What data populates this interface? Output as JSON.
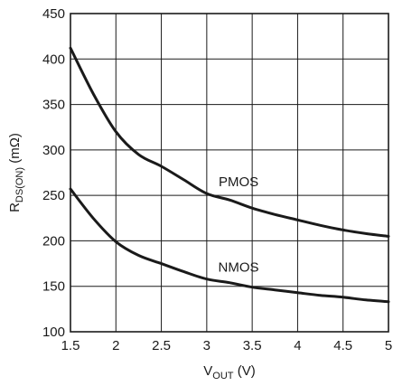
{
  "chart_data": {
    "type": "line",
    "title": "",
    "xlabel": {
      "main": "V",
      "sub": "OUT",
      "suffix": " (V)"
    },
    "ylabel": {
      "main": "R",
      "sub": "DS(ON)",
      "suffix": " (mΩ)"
    },
    "xlim": [
      1.5,
      5
    ],
    "ylim": [
      100,
      450
    ],
    "x_ticks": [
      1.5,
      2,
      2.5,
      3,
      3.5,
      4,
      4.5,
      5
    ],
    "x_tick_labels": [
      "1.5",
      "2",
      "2.5",
      "3",
      "3.5",
      "4",
      "4.5",
      "5"
    ],
    "y_ticks": [
      100,
      150,
      200,
      250,
      300,
      350,
      400,
      450
    ],
    "y_tick_labels": [
      "100",
      "150",
      "200",
      "250",
      "300",
      "350",
      "400",
      "450"
    ],
    "grid": true,
    "colors": {
      "line": "#1a1a1a",
      "grid": "#1a1a1a",
      "frame": "#1a1a1a"
    },
    "series": [
      {
        "name": "PMOS",
        "label_x": 3.35,
        "label_y": 265,
        "x": [
          1.5,
          1.75,
          2.0,
          2.25,
          2.5,
          2.75,
          3.0,
          3.25,
          3.5,
          3.75,
          4.0,
          4.25,
          4.5,
          4.75,
          5.0
        ],
        "y": [
          412,
          362,
          320,
          295,
          282,
          267,
          252,
          245,
          236,
          229,
          223,
          217,
          212,
          208,
          205
        ]
      },
      {
        "name": "NMOS",
        "label_x": 3.35,
        "label_y": 171,
        "x": [
          1.5,
          1.75,
          2.0,
          2.25,
          2.5,
          2.75,
          3.0,
          3.25,
          3.5,
          3.75,
          4.0,
          4.25,
          4.5,
          4.75,
          5.0
        ],
        "y": [
          257,
          225,
          199,
          184,
          175,
          166,
          158,
          154,
          149,
          146,
          143,
          140,
          138,
          135,
          133
        ]
      }
    ]
  }
}
